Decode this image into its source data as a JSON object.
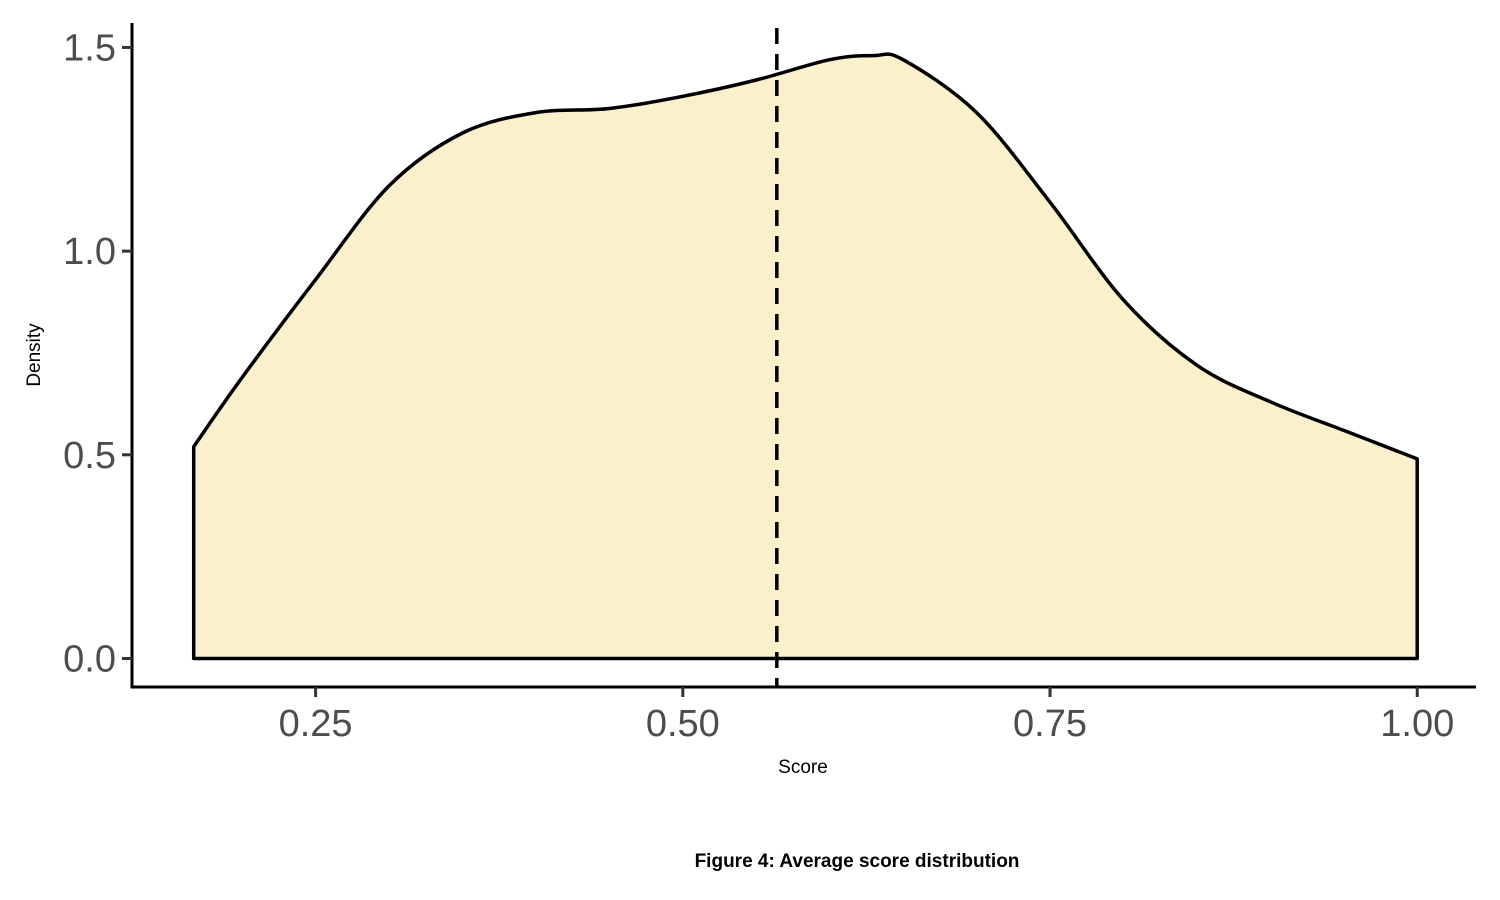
{
  "chart_data": {
    "type": "area",
    "x": [
      0.167,
      0.2,
      0.25,
      0.3,
      0.35,
      0.4,
      0.45,
      0.5,
      0.55,
      0.6,
      0.63,
      0.65,
      0.7,
      0.75,
      0.8,
      0.85,
      0.9,
      0.95,
      1.0
    ],
    "y": [
      0.52,
      0.69,
      0.93,
      1.16,
      1.29,
      1.34,
      1.35,
      1.38,
      1.42,
      1.47,
      1.48,
      1.47,
      1.34,
      1.12,
      0.88,
      0.72,
      0.63,
      0.56,
      0.49
    ],
    "mean_line_x": 0.564,
    "xlabel": "Score",
    "ylabel": "Density",
    "xticks": [
      0.25,
      0.5,
      0.75,
      1.0
    ],
    "xtick_labels": [
      "0.25",
      "0.50",
      "0.75",
      "1.00"
    ],
    "yticks": [
      0.0,
      0.5,
      1.0,
      1.5
    ],
    "ytick_labels": [
      "0.0",
      "0.5",
      "1.0",
      "1.5"
    ],
    "xlim": [
      0.125,
      1.04
    ],
    "ylim": [
      -0.07,
      1.56
    ],
    "grid": false,
    "fill_color": "#FAF0CC",
    "line_color": "#000000"
  },
  "caption": "Figure 4: Average score distribution"
}
